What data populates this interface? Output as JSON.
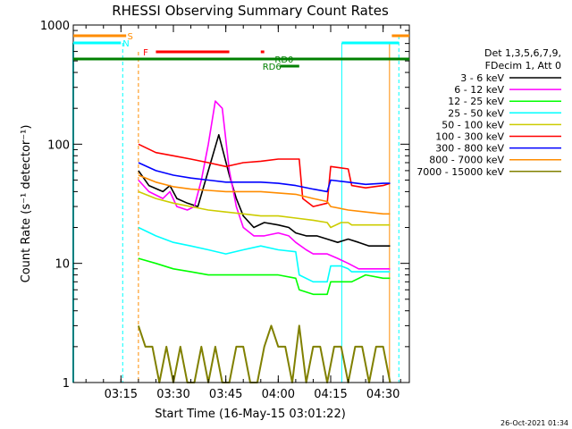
{
  "title": "RHESSI Observing Summary Count Rates",
  "xlabel": "Start Time (16-May-15 03:01:22)",
  "ylabel": "Count Rate (s⁻¹ detector⁻¹)",
  "timestamp": "26-Oct-2021 01:34",
  "legend_header": [
    "Det 1,3,5,6,7,9,",
    "FDecim 1, Att 0"
  ],
  "flags": {
    "s": "S",
    "n": "N",
    "f": "F",
    "rd0": "RD0",
    "rd6": "RD6"
  },
  "chart_data": {
    "type": "line",
    "y_scale": "log",
    "ylim": [
      1,
      1000
    ],
    "xlim": [
      "03:01:22",
      "04:37:30"
    ],
    "x_ticks": [
      "03:15",
      "03:30",
      "03:45",
      "04:00",
      "04:15",
      "04:30"
    ],
    "y_ticks": [
      "1",
      "10",
      "100",
      "1000"
    ],
    "series": [
      {
        "name": "3 - 6 keV",
        "color": "#000000",
        "t": [
          "03:20",
          "03:23",
          "03:27",
          "03:29",
          "03:31",
          "03:34",
          "03:37",
          "03:40",
          "03:43",
          "03:46",
          "03:48",
          "03:50",
          "03:53",
          "03:56",
          "04:00",
          "04:03",
          "04:05",
          "04:08",
          "04:11",
          "04:14",
          "04:17",
          "04:20",
          "04:23",
          "04:26",
          "04:30",
          "04:32"
        ],
        "v": [
          60,
          45,
          40,
          45,
          35,
          32,
          30,
          60,
          120,
          55,
          35,
          25,
          20,
          22,
          21,
          20,
          18,
          17,
          17,
          16,
          15,
          16,
          15,
          14,
          14,
          14
        ]
      },
      {
        "name": "6 - 12 keV",
        "color": "#ff00ff",
        "t": [
          "03:20",
          "03:23",
          "03:27",
          "03:29",
          "03:31",
          "03:34",
          "03:36",
          "03:38",
          "03:40",
          "03:42",
          "03:44",
          "03:46",
          "03:48",
          "03:50",
          "03:53",
          "03:56",
          "04:00",
          "04:03",
          "04:05",
          "04:08",
          "04:10",
          "04:14",
          "04:17",
          "04:20",
          "04:23",
          "04:26",
          "04:30",
          "04:32"
        ],
        "v": [
          50,
          40,
          35,
          40,
          30,
          28,
          30,
          50,
          100,
          230,
          200,
          60,
          30,
          20,
          17,
          17,
          18,
          17,
          15,
          13,
          12,
          12,
          11,
          10,
          9,
          9,
          9,
          9
        ]
      },
      {
        "name": "12 - 25 keV",
        "color": "#00ff00",
        "t": [
          "03:20",
          "03:25",
          "03:30",
          "03:35",
          "03:40",
          "03:45",
          "03:50",
          "03:55",
          "04:00",
          "04:05",
          "04:06",
          "04:10",
          "04:14",
          "04:15",
          "04:18",
          "04:20",
          "04:21",
          "04:25",
          "04:30",
          "04:32"
        ],
        "v": [
          11,
          10,
          9,
          8.5,
          8,
          8,
          8,
          8,
          8,
          7.5,
          6,
          5.5,
          5.5,
          7,
          7,
          7,
          7,
          8,
          7.5,
          7.5
        ]
      },
      {
        "name": "25 - 50 keV",
        "color": "#00ffff",
        "t": [
          "03:20",
          "03:25",
          "03:30",
          "03:35",
          "03:40",
          "03:45",
          "03:50",
          "03:55",
          "04:00",
          "04:05",
          "04:06",
          "04:10",
          "04:14",
          "04:15",
          "04:18",
          "04:20",
          "04:21",
          "04:25",
          "04:30",
          "04:32"
        ],
        "v": [
          20,
          17,
          15,
          14,
          13,
          12,
          13,
          14,
          13,
          12.5,
          8,
          7,
          7,
          9.5,
          9.5,
          9,
          8.5,
          8.5,
          8.5,
          8.5
        ]
      },
      {
        "name": "50 - 100 keV",
        "color": "#cccc00",
        "t": [
          "03:20",
          "03:25",
          "03:30",
          "03:35",
          "03:40",
          "03:45",
          "03:50",
          "03:55",
          "04:00",
          "04:05",
          "04:10",
          "04:14",
          "04:15",
          "04:18",
          "04:20",
          "04:21",
          "04:25",
          "04:30",
          "04:32"
        ],
        "v": [
          40,
          35,
          32,
          30,
          28,
          27,
          26,
          25,
          25,
          24,
          23,
          22,
          20,
          22,
          22,
          21,
          21,
          21,
          21
        ]
      },
      {
        "name": "100 - 300 keV",
        "color": "#ff0000",
        "t": [
          "03:20",
          "03:25",
          "03:30",
          "03:35",
          "03:40",
          "03:45",
          "03:50",
          "03:55",
          "04:00",
          "04:06",
          "04:07",
          "04:10",
          "04:14",
          "04:15",
          "04:20",
          "04:21",
          "04:25",
          "04:30",
          "04:32"
        ],
        "v": [
          100,
          85,
          80,
          75,
          70,
          65,
          70,
          72,
          75,
          75,
          35,
          30,
          32,
          65,
          62,
          45,
          43,
          45,
          47
        ]
      },
      {
        "name": "300 - 800 keV",
        "color": "#0000ff",
        "t": [
          "03:20",
          "03:25",
          "03:30",
          "03:35",
          "03:40",
          "03:45",
          "03:50",
          "03:55",
          "04:00",
          "04:05",
          "04:10",
          "04:14",
          "04:15",
          "04:20",
          "04:25",
          "04:30",
          "04:32"
        ],
        "v": [
          70,
          60,
          55,
          52,
          50,
          48,
          48,
          48,
          47,
          45,
          42,
          40,
          50,
          48,
          46,
          47,
          47
        ]
      },
      {
        "name": "800 - 7000 keV",
        "color": "#ff8c00",
        "t": [
          "03:20",
          "03:25",
          "03:30",
          "03:35",
          "03:40",
          "03:45",
          "03:50",
          "03:55",
          "04:00",
          "04:05",
          "04:10",
          "04:14",
          "04:15",
          "04:20",
          "04:25",
          "04:30",
          "04:32"
        ],
        "v": [
          55,
          48,
          44,
          42,
          41,
          40,
          40,
          40,
          39,
          38,
          35,
          33,
          30,
          28,
          27,
          26,
          26
        ]
      },
      {
        "name": "7000 - 15000 keV",
        "color": "#808000",
        "t": [
          "03:20",
          "03:22",
          "03:24",
          "03:26",
          "03:28",
          "03:30",
          "03:32",
          "03:34",
          "03:36",
          "03:38",
          "03:40",
          "03:42",
          "03:44",
          "03:46",
          "03:48",
          "03:50",
          "03:52",
          "03:54",
          "03:56",
          "03:58",
          "04:00",
          "04:02",
          "04:04",
          "04:06",
          "04:08",
          "04:10",
          "04:12",
          "04:14",
          "04:16",
          "04:18",
          "04:20",
          "04:22",
          "04:24",
          "04:26",
          "04:28",
          "04:30",
          "04:32"
        ],
        "v": [
          3,
          2,
          2,
          1,
          2,
          1,
          2,
          1,
          1,
          2,
          1,
          2,
          1,
          1,
          2,
          2,
          1,
          1,
          2,
          3,
          2,
          2,
          1,
          3,
          1,
          2,
          2,
          1,
          2,
          2,
          1,
          2,
          2,
          1,
          2,
          2,
          1
        ]
      }
    ]
  }
}
